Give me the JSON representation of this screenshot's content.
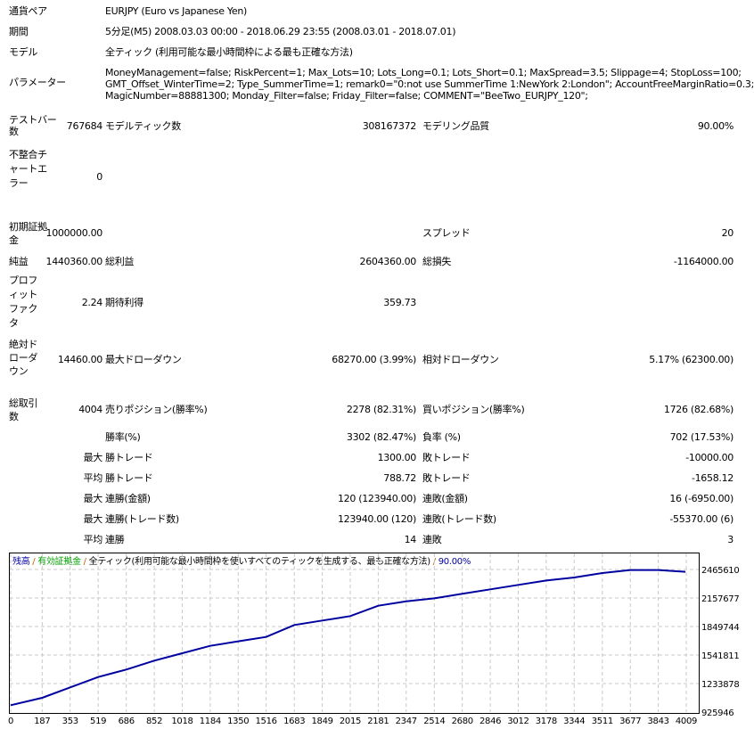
{
  "header": [
    {
      "label": "通貨ペア",
      "value": "EURJPY (Euro vs Japanese Yen)"
    },
    {
      "label": "期間",
      "value": "5分足(M5) 2008.03.03 00:00 - 2018.06.29 23:55 (2008.03.01 - 2018.07.01)"
    },
    {
      "label": "モデル",
      "value": "全ティック (利用可能な最小時間枠による最も正確な方法)"
    }
  ],
  "params": {
    "label": "パラメーター",
    "lines": [
      "MoneyManagement=false; RiskPercent=1; Max_Lots=10; Lots_Long=0.1; Lots_Short=0.1; MaxSpread=3.5; Slippage=4; StopLoss=100;",
      "GMT_Offset_WinterTime=2; Type_SummerTime=1; remark0=\"0:not use SummerTime 1:NewYork 2:London\"; AccountFreeMarginRatio=0.3;",
      "MagicNumber=88881300; Monday_Filter=false; Friday_Filter=false; COMMENT=\"BeeTwo_EURJPY_120\";"
    ]
  },
  "stats": {
    "bars_label": "テストバー数",
    "bars": "767684",
    "ticks_label": "モデルティック数",
    "ticks": "308167372",
    "quality_label": "モデリング品質",
    "quality": "90.00%",
    "mismatch_label": "不整合チャートエラー",
    "mismatch": "0",
    "deposit_label": "初期証拠金",
    "deposit": "1000000.00",
    "spread_label": "スプレッド",
    "spread": "20",
    "net_label": "純益",
    "net": "1440360.00",
    "gross_profit_label": "総利益",
    "gross_profit": "2604360.00",
    "gross_loss_label": "総損失",
    "gross_loss": "-1164000.00",
    "pf_label": "プロフィットファクタ",
    "pf": "2.24",
    "expected_label": "期待利得",
    "expected": "359.73",
    "abs_dd_label": "絶対ドローダウン",
    "abs_dd": "14460.00",
    "max_dd_label": "最大ドローダウン",
    "max_dd": "68270.00 (3.99%)",
    "rel_dd_label": "相対ドローダウン",
    "rel_dd": "5.17% (62300.00)",
    "total_label": "総取引数",
    "total": "4004",
    "short_label": "売りポジション(勝率%)",
    "short": "2278 (82.31%)",
    "long_label": "買いポジション(勝率%)",
    "long": "1726 (82.68%)"
  },
  "rows": [
    {
      "pre": "",
      "a": "勝率(%)",
      "av": "3302 (82.47%)",
      "b": "負率 (%)",
      "bv": "702 (17.53%)"
    },
    {
      "pre": "最大",
      "a": "勝トレード",
      "av": "1300.00",
      "b": "敗トレード",
      "bv": "-10000.00"
    },
    {
      "pre": "平均",
      "a": "勝トレード",
      "av": "788.72",
      "b": "敗トレード",
      "bv": "-1658.12"
    },
    {
      "pre": "最大",
      "a": "連勝(金額)",
      "av": "120 (123940.00)",
      "b": "連敗(金額)",
      "bv": "16 (-6950.00)"
    },
    {
      "pre": "最大",
      "a": "連勝(トレード数)",
      "av": "123940.00 (120)",
      "b": "連敗(トレード数)",
      "bv": "-55370.00 (6)"
    },
    {
      "pre": "平均",
      "a": "連勝",
      "av": "14",
      "b": "連敗",
      "bv": "3"
    }
  ],
  "chart_data": {
    "type": "line",
    "legend": {
      "balance": "残高",
      "equity": "有効証拠金",
      "model": "全ティック(利用可能な最小時間枠を使いすべてのティックを生成する、最も正確な方法)",
      "quality": "90.00%",
      "sep": "/"
    },
    "colors": {
      "balance": "#0000a0",
      "equity": "#00a000",
      "grid": "#c8c8c8"
    },
    "x_ticks": [
      "0",
      "187",
      "353",
      "519",
      "686",
      "852",
      "1018",
      "1184",
      "1350",
      "1516",
      "1683",
      "1849",
      "2015",
      "2181",
      "2347",
      "2514",
      "2680",
      "2846",
      "3012",
      "3178",
      "3344",
      "3511",
      "3677",
      "3843",
      "4009"
    ],
    "y_ticks": [
      "2465610",
      "2157677",
      "1849744",
      "1541811",
      "1233878",
      "925946"
    ],
    "xlim": [
      0,
      4009
    ],
    "ylim": [
      925946,
      2465610
    ],
    "grid": true,
    "series": [
      {
        "x": [
          0,
          187,
          353,
          519,
          686,
          852,
          1018,
          1184,
          1350,
          1516,
          1683,
          1849,
          2015,
          2181,
          2347,
          2514,
          2680,
          2846,
          3012,
          3178,
          3344,
          3511,
          3677,
          3843,
          4004
        ],
        "y": [
          1000000,
          1080000,
          1192000,
          1304000,
          1385000,
          1481000,
          1561000,
          1641000,
          1690000,
          1737000,
          1866000,
          1914000,
          1962000,
          2074000,
          2122000,
          2154000,
          2203000,
          2251000,
          2299000,
          2347000,
          2379000,
          2427000,
          2459000,
          2459000,
          2440360
        ]
      }
    ]
  }
}
